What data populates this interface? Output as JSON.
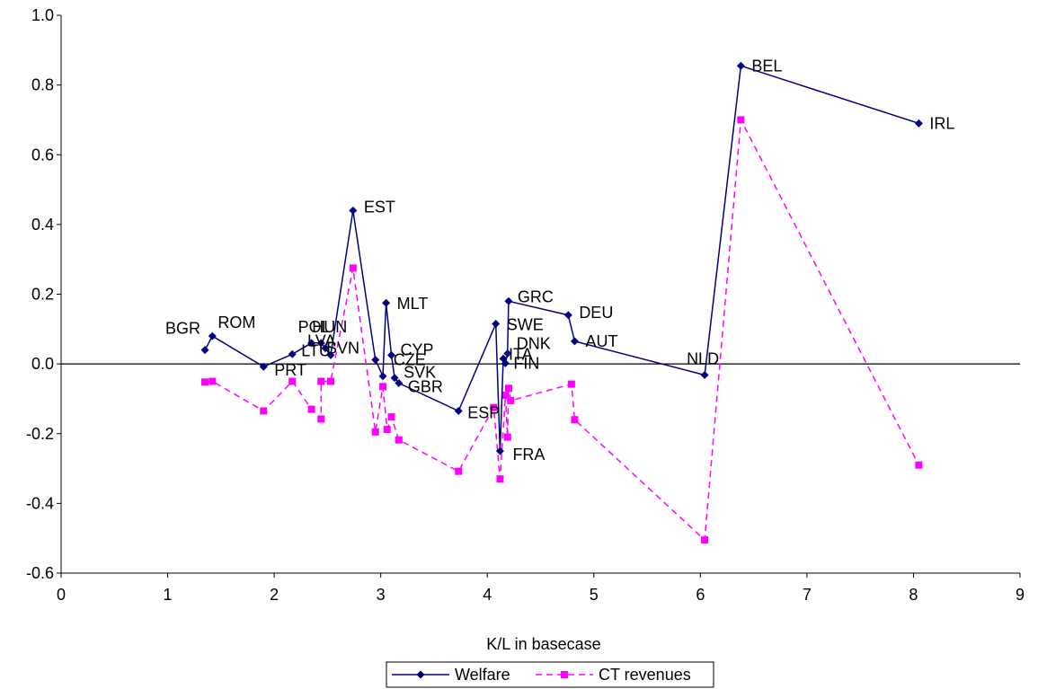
{
  "chart_data": {
    "type": "line",
    "title": "",
    "xlabel": "K/L in basecase",
    "ylabel": "",
    "xlim": [
      0,
      9
    ],
    "ylim": [
      -0.6,
      1.0
    ],
    "x_ticks": [
      "0",
      "1",
      "2",
      "3",
      "4",
      "5",
      "6",
      "7",
      "8",
      "9"
    ],
    "y_ticks": [
      "1.0",
      "0.8",
      "0.6",
      "0.4",
      "0.2",
      "0.0",
      "-0.2",
      "-0.4",
      "-0.6"
    ],
    "grid": false,
    "zero_line": true,
    "legend_position": "bottom",
    "series": [
      {
        "name": "Welfare",
        "color": "#000080",
        "marker": "diamond",
        "dash": "solid",
        "points": [
          {
            "label": "BGR",
            "x": 1.35,
            "y": 0.04
          },
          {
            "label": "ROM",
            "x": 1.42,
            "y": 0.08
          },
          {
            "label": "PRT",
            "x": 1.9,
            "y": -0.008
          },
          {
            "label": "LTU",
            "x": 2.17,
            "y": 0.028
          },
          {
            "label": "POL",
            "x": 2.35,
            "y": 0.06
          },
          {
            "label": "HUN",
            "x": 2.44,
            "y": 0.06
          },
          {
            "label": "LVA",
            "x": 2.48,
            "y": 0.045
          },
          {
            "label": "SVN",
            "x": 2.53,
            "y": 0.025
          },
          {
            "label": "EST",
            "x": 2.74,
            "y": 0.44
          },
          {
            "label": "CZE",
            "x": 2.95,
            "y": 0.012
          },
          {
            "label": "",
            "x": 3.02,
            "y": -0.035
          },
          {
            "label": "MLT",
            "x": 3.05,
            "y": 0.175
          },
          {
            "label": "CYP",
            "x": 3.1,
            "y": 0.025
          },
          {
            "label": "SVK",
            "x": 3.13,
            "y": -0.04
          },
          {
            "label": "GBR",
            "x": 3.17,
            "y": -0.055
          },
          {
            "label": "ESP",
            "x": 3.73,
            "y": -0.135
          },
          {
            "label": "SWE",
            "x": 4.08,
            "y": 0.115
          },
          {
            "label": "FRA",
            "x": 4.12,
            "y": -0.25
          },
          {
            "label": "ITA",
            "x": 4.15,
            "y": 0.015
          },
          {
            "label": "FIN",
            "x": 4.17,
            "y": 0.002
          },
          {
            "label": "DNK",
            "x": 4.19,
            "y": 0.03
          },
          {
            "label": "GRC",
            "x": 4.2,
            "y": 0.18
          },
          {
            "label": "DEU",
            "x": 4.76,
            "y": 0.14
          },
          {
            "label": "AUT",
            "x": 4.82,
            "y": 0.065
          },
          {
            "label": "NLD",
            "x": 6.04,
            "y": -0.032
          },
          {
            "label": "BEL",
            "x": 6.38,
            "y": 0.855
          },
          {
            "label": "IRL",
            "x": 8.05,
            "y": 0.69
          }
        ]
      },
      {
        "name": "CT revenues",
        "color": "#ff00ff",
        "marker": "square",
        "dash": "dashed",
        "points": [
          {
            "x": 1.35,
            "y": -0.052
          },
          {
            "x": 1.42,
            "y": -0.05
          },
          {
            "x": 1.9,
            "y": -0.135
          },
          {
            "x": 2.17,
            "y": -0.05
          },
          {
            "x": 2.35,
            "y": -0.13
          },
          {
            "x": 2.44,
            "y": -0.158
          },
          {
            "x": 2.44,
            "y": -0.05
          },
          {
            "x": 2.53,
            "y": -0.05
          },
          {
            "x": 2.74,
            "y": 0.275
          },
          {
            "x": 2.95,
            "y": -0.195
          },
          {
            "x": 3.02,
            "y": -0.065
          },
          {
            "x": 3.06,
            "y": -0.188
          },
          {
            "x": 3.1,
            "y": -0.152
          },
          {
            "x": 3.17,
            "y": -0.218
          },
          {
            "x": 3.73,
            "y": -0.308
          },
          {
            "x": 4.06,
            "y": -0.125
          },
          {
            "x": 4.12,
            "y": -0.33
          },
          {
            "x": 4.17,
            "y": -0.09
          },
          {
            "x": 4.19,
            "y": -0.21
          },
          {
            "x": 4.2,
            "y": -0.07
          },
          {
            "x": 4.22,
            "y": -0.105
          },
          {
            "x": 4.79,
            "y": -0.058
          },
          {
            "x": 4.82,
            "y": -0.16
          },
          {
            "x": 6.04,
            "y": -0.505
          },
          {
            "x": 6.38,
            "y": 0.7
          },
          {
            "x": 8.05,
            "y": -0.29
          }
        ]
      }
    ]
  }
}
